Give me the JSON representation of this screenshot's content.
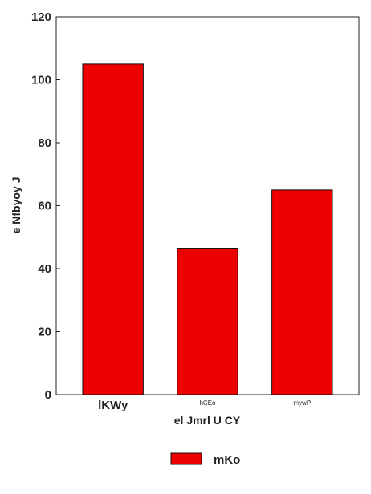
{
  "chart_data": {
    "type": "bar",
    "categories": [
      "lKWy",
      "hCEo",
      "mywP"
    ],
    "series": [
      {
        "name": "mKo",
        "values": [
          105,
          46.5,
          65
        ]
      }
    ],
    "xlabel": "el Jmrl U CY",
    "ylabel": "e Nfbyoy J",
    "ylim": [
      0,
      120
    ],
    "yticks": [
      0,
      20,
      40,
      60,
      80,
      100,
      120
    ],
    "bar_color": "#ee0000",
    "edge_color": "#111111",
    "grid": false,
    "legend": {
      "placement": "bottom-center"
    }
  }
}
